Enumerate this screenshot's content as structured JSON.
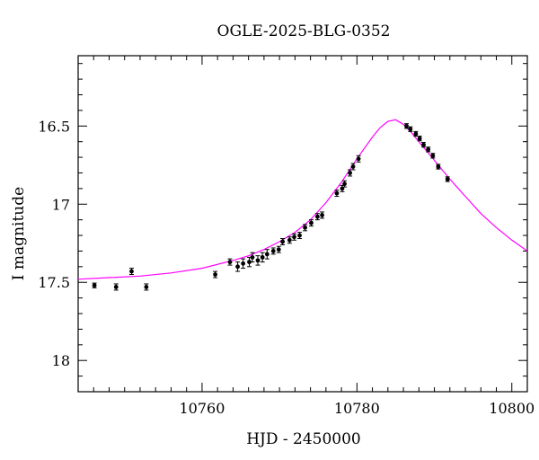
{
  "chart_data": {
    "type": "scatter",
    "title": "OGLE-2025-BLG-0352",
    "xlabel": "HJD - 2450000",
    "ylabel": "I magnitude",
    "xlim": [
      10744,
      10802
    ],
    "ylim": [
      18.2,
      16.05
    ],
    "y_inverted": true,
    "x_ticks": [
      10760,
      10780,
      10800
    ],
    "y_ticks": [
      16.5,
      17,
      17.5,
      18
    ],
    "y_tick_labels": [
      "16.5",
      "17",
      "17.5",
      "18"
    ],
    "x_minor_step": 2,
    "y_minor_step": 0.1,
    "grid": false,
    "colors": {
      "points": "#000000",
      "model": "#ff00ff",
      "axes": "#000000"
    },
    "model_curve": {
      "x": [
        10744,
        10748,
        10752,
        10756,
        10760,
        10764,
        10766,
        10768,
        10770,
        10772,
        10774,
        10776,
        10778,
        10780,
        10782,
        10783,
        10784,
        10785,
        10786,
        10787,
        10788,
        10789,
        10790,
        10791,
        10792,
        10794,
        10796,
        10798,
        10800,
        10802
      ],
      "y": [
        17.48,
        17.47,
        17.46,
        17.44,
        17.41,
        17.36,
        17.33,
        17.29,
        17.24,
        17.18,
        17.1,
        16.99,
        16.86,
        16.71,
        16.57,
        16.51,
        16.47,
        16.46,
        16.49,
        16.54,
        16.6,
        16.66,
        16.72,
        16.78,
        16.84,
        16.95,
        17.06,
        17.15,
        17.23,
        17.3
      ]
    },
    "points": [
      {
        "x": 10746.1,
        "y": 17.52,
        "err": 0.015
      },
      {
        "x": 10748.9,
        "y": 17.53,
        "err": 0.02
      },
      {
        "x": 10750.9,
        "y": 17.43,
        "err": 0.02
      },
      {
        "x": 10752.8,
        "y": 17.53,
        "err": 0.02
      },
      {
        "x": 10761.7,
        "y": 17.45,
        "err": 0.02
      },
      {
        "x": 10763.6,
        "y": 17.37,
        "err": 0.02
      },
      {
        "x": 10764.6,
        "y": 17.4,
        "err": 0.03
      },
      {
        "x": 10765.3,
        "y": 17.38,
        "err": 0.03
      },
      {
        "x": 10766.1,
        "y": 17.37,
        "err": 0.03
      },
      {
        "x": 10766.5,
        "y": 17.34,
        "err": 0.03
      },
      {
        "x": 10767.2,
        "y": 17.36,
        "err": 0.03
      },
      {
        "x": 10767.8,
        "y": 17.34,
        "err": 0.03
      },
      {
        "x": 10768.4,
        "y": 17.32,
        "err": 0.03
      },
      {
        "x": 10769.2,
        "y": 17.3,
        "err": 0.02
      },
      {
        "x": 10769.9,
        "y": 17.29,
        "err": 0.02
      },
      {
        "x": 10770.4,
        "y": 17.24,
        "err": 0.02
      },
      {
        "x": 10771.3,
        "y": 17.23,
        "err": 0.02
      },
      {
        "x": 10771.9,
        "y": 17.21,
        "err": 0.02
      },
      {
        "x": 10772.6,
        "y": 17.2,
        "err": 0.02
      },
      {
        "x": 10773.3,
        "y": 17.15,
        "err": 0.02
      },
      {
        "x": 10774.1,
        "y": 17.12,
        "err": 0.02
      },
      {
        "x": 10774.9,
        "y": 17.08,
        "err": 0.02
      },
      {
        "x": 10775.5,
        "y": 17.07,
        "err": 0.02
      },
      {
        "x": 10777.4,
        "y": 16.93,
        "err": 0.02
      },
      {
        "x": 10778.1,
        "y": 16.9,
        "err": 0.02
      },
      {
        "x": 10778.4,
        "y": 16.87,
        "err": 0.02
      },
      {
        "x": 10779.1,
        "y": 16.8,
        "err": 0.02
      },
      {
        "x": 10779.5,
        "y": 16.76,
        "err": 0.02
      },
      {
        "x": 10780.2,
        "y": 16.71,
        "err": 0.02
      },
      {
        "x": 10786.4,
        "y": 16.5,
        "err": 0.015
      },
      {
        "x": 10786.9,
        "y": 16.52,
        "err": 0.015
      },
      {
        "x": 10787.6,
        "y": 16.55,
        "err": 0.015
      },
      {
        "x": 10788.1,
        "y": 16.58,
        "err": 0.015
      },
      {
        "x": 10788.6,
        "y": 16.62,
        "err": 0.015
      },
      {
        "x": 10789.2,
        "y": 16.65,
        "err": 0.015
      },
      {
        "x": 10789.8,
        "y": 16.69,
        "err": 0.015
      },
      {
        "x": 10790.5,
        "y": 16.76,
        "err": 0.015
      },
      {
        "x": 10791.7,
        "y": 16.84,
        "err": 0.015
      }
    ]
  }
}
